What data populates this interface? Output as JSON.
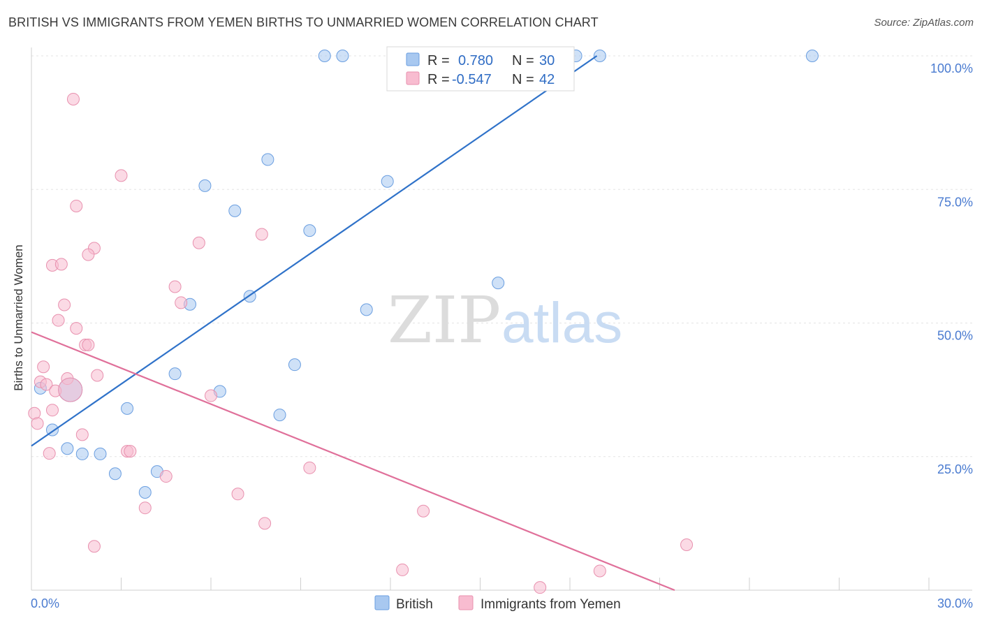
{
  "header": {
    "title": "BRITISH VS IMMIGRANTS FROM YEMEN BIRTHS TO UNMARRIED WOMEN CORRELATION CHART",
    "source": "Source: ZipAtlas.com"
  },
  "watermark": {
    "zip": "ZIP",
    "atlas": "atlas"
  },
  "stats": {
    "rows": [
      {
        "r_label": "R =",
        "r_value": "0.780",
        "n_label": "N =",
        "n_value": "30",
        "color": "#a8c8f0",
        "stroke": "#6a9ee0"
      },
      {
        "r_label": "R =",
        "r_value": "-0.547",
        "n_label": "N =",
        "n_value": "42",
        "color": "#f8bcd0",
        "stroke": "#e890ae"
      }
    ]
  },
  "colors": {
    "british_fill": "#a8c8f0",
    "british_stroke": "#6a9ee0",
    "british_line": "#2f72c9",
    "yemen_fill": "#f8bcd0",
    "yemen_stroke": "#e890ae",
    "yemen_line": "#e0709a",
    "tick_text": "#4a7bd0",
    "grid": "#e3e3e3"
  },
  "chart_data": {
    "type": "scatter",
    "title": "BRITISH VS IMMIGRANTS FROM YEMEN BIRTHS TO UNMARRIED WOMEN CORRELATION CHART",
    "xlabel": "",
    "ylabel": "Births to Unmarried Women",
    "xlim": [
      0,
      30
    ],
    "ylim": [
      0,
      100
    ],
    "x_tick_labels": [
      "0.0%",
      "30.0%"
    ],
    "y_ticks": [
      25,
      50,
      75,
      100
    ],
    "y_tick_labels": [
      "25.0%",
      "50.0%",
      "75.0%",
      "100.0%"
    ],
    "grid": true,
    "legend_position": "bottom-center",
    "series": [
      {
        "name": "British",
        "points": [
          [
            9.8,
            100
          ],
          [
            10.4,
            100
          ],
          [
            12.6,
            100
          ],
          [
            13.3,
            100
          ],
          [
            18.2,
            100
          ],
          [
            19.0,
            100
          ],
          [
            26.1,
            100
          ],
          [
            7.9,
            80.6
          ],
          [
            5.8,
            75.7
          ],
          [
            11.9,
            76.5
          ],
          [
            6.8,
            71.0
          ],
          [
            9.3,
            67.3
          ],
          [
            15.6,
            57.5
          ],
          [
            5.3,
            53.5
          ],
          [
            7.3,
            55.0
          ],
          [
            11.2,
            52.5
          ],
          [
            8.8,
            42.2
          ],
          [
            4.8,
            40.5
          ],
          [
            6.3,
            37.2
          ],
          [
            3.2,
            34.0
          ],
          [
            8.3,
            32.8
          ],
          [
            0.3,
            37.8
          ],
          [
            0.7,
            30.0
          ],
          [
            1.2,
            26.5
          ],
          [
            1.7,
            25.5
          ],
          [
            2.3,
            25.5
          ],
          [
            2.8,
            21.8
          ],
          [
            4.2,
            22.2
          ],
          [
            3.8,
            18.3
          ],
          [
            1.3,
            37.5
          ]
        ],
        "trend": {
          "x": [
            0,
            18.9
          ],
          "y": [
            27.0,
            100
          ]
        }
      },
      {
        "name": "Immigrants from Yemen",
        "points": [
          [
            1.4,
            91.9
          ],
          [
            3.0,
            77.6
          ],
          [
            1.5,
            71.9
          ],
          [
            5.6,
            65.0
          ],
          [
            7.7,
            66.6
          ],
          [
            2.1,
            64.0
          ],
          [
            1.9,
            62.8
          ],
          [
            0.7,
            60.8
          ],
          [
            1.0,
            61.0
          ],
          [
            4.8,
            56.8
          ],
          [
            1.1,
            53.4
          ],
          [
            5.0,
            53.8
          ],
          [
            0.9,
            50.5
          ],
          [
            1.5,
            49.0
          ],
          [
            1.8,
            45.9
          ],
          [
            1.9,
            45.9
          ],
          [
            0.4,
            41.8
          ],
          [
            1.2,
            39.6
          ],
          [
            2.2,
            40.2
          ],
          [
            0.3,
            39.0
          ],
          [
            0.5,
            38.5
          ],
          [
            0.8,
            37.3
          ],
          [
            6.0,
            36.4
          ],
          [
            0.1,
            33.1
          ],
          [
            0.7,
            33.7
          ],
          [
            0.2,
            31.2
          ],
          [
            1.7,
            29.1
          ],
          [
            0.6,
            25.6
          ],
          [
            3.2,
            26.0
          ],
          [
            3.3,
            26.0
          ],
          [
            4.5,
            21.3
          ],
          [
            9.3,
            22.9
          ],
          [
            6.9,
            18.0
          ],
          [
            3.8,
            15.4
          ],
          [
            7.8,
            12.5
          ],
          [
            13.1,
            14.8
          ],
          [
            2.1,
            8.2
          ],
          [
            12.4,
            3.8
          ],
          [
            19.0,
            3.6
          ],
          [
            21.9,
            8.5
          ],
          [
            17.0,
            0.5
          ],
          [
            1.3,
            37.5
          ]
        ],
        "trend": {
          "x": [
            0,
            21.5
          ],
          "y": [
            48.3,
            0
          ]
        }
      }
    ]
  }
}
